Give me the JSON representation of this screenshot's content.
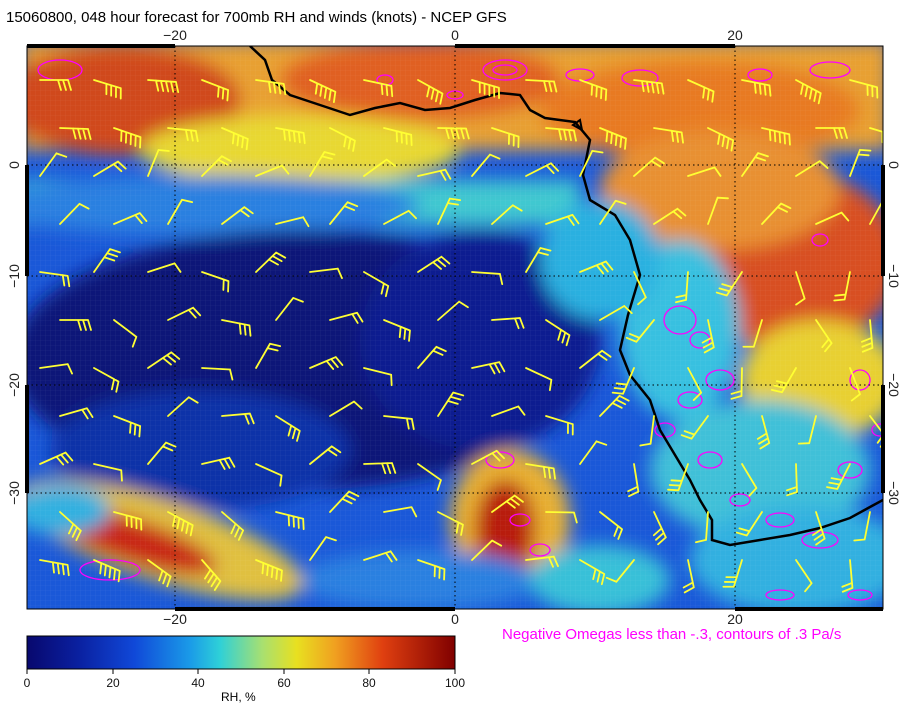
{
  "title": "15060800, 048 hour forecast for 700mb RH and winds (knots) - NCEP GFS",
  "annotation": "Negative Omegas less than -.3, contours of .3 Pa/s",
  "colorbar": {
    "label": "RH, %",
    "ticks": [
      "0",
      "20",
      "40",
      "60",
      "80",
      "100"
    ],
    "colors": [
      "#08086e",
      "#1030c8",
      "#1a8ce0",
      "#2ed0d8",
      "#aee06a",
      "#e8e020",
      "#f0a020",
      "#e04010",
      "#800000"
    ]
  },
  "axes": {
    "lon_ticks": [
      "−20",
      "0",
      "20"
    ],
    "lat_ticks": [
      "0",
      "−10",
      "−20",
      "−30"
    ]
  },
  "colors": {
    "barbs": "#ffff33",
    "omega_contours": "#ff00ff",
    "coast": "#000000"
  }
}
